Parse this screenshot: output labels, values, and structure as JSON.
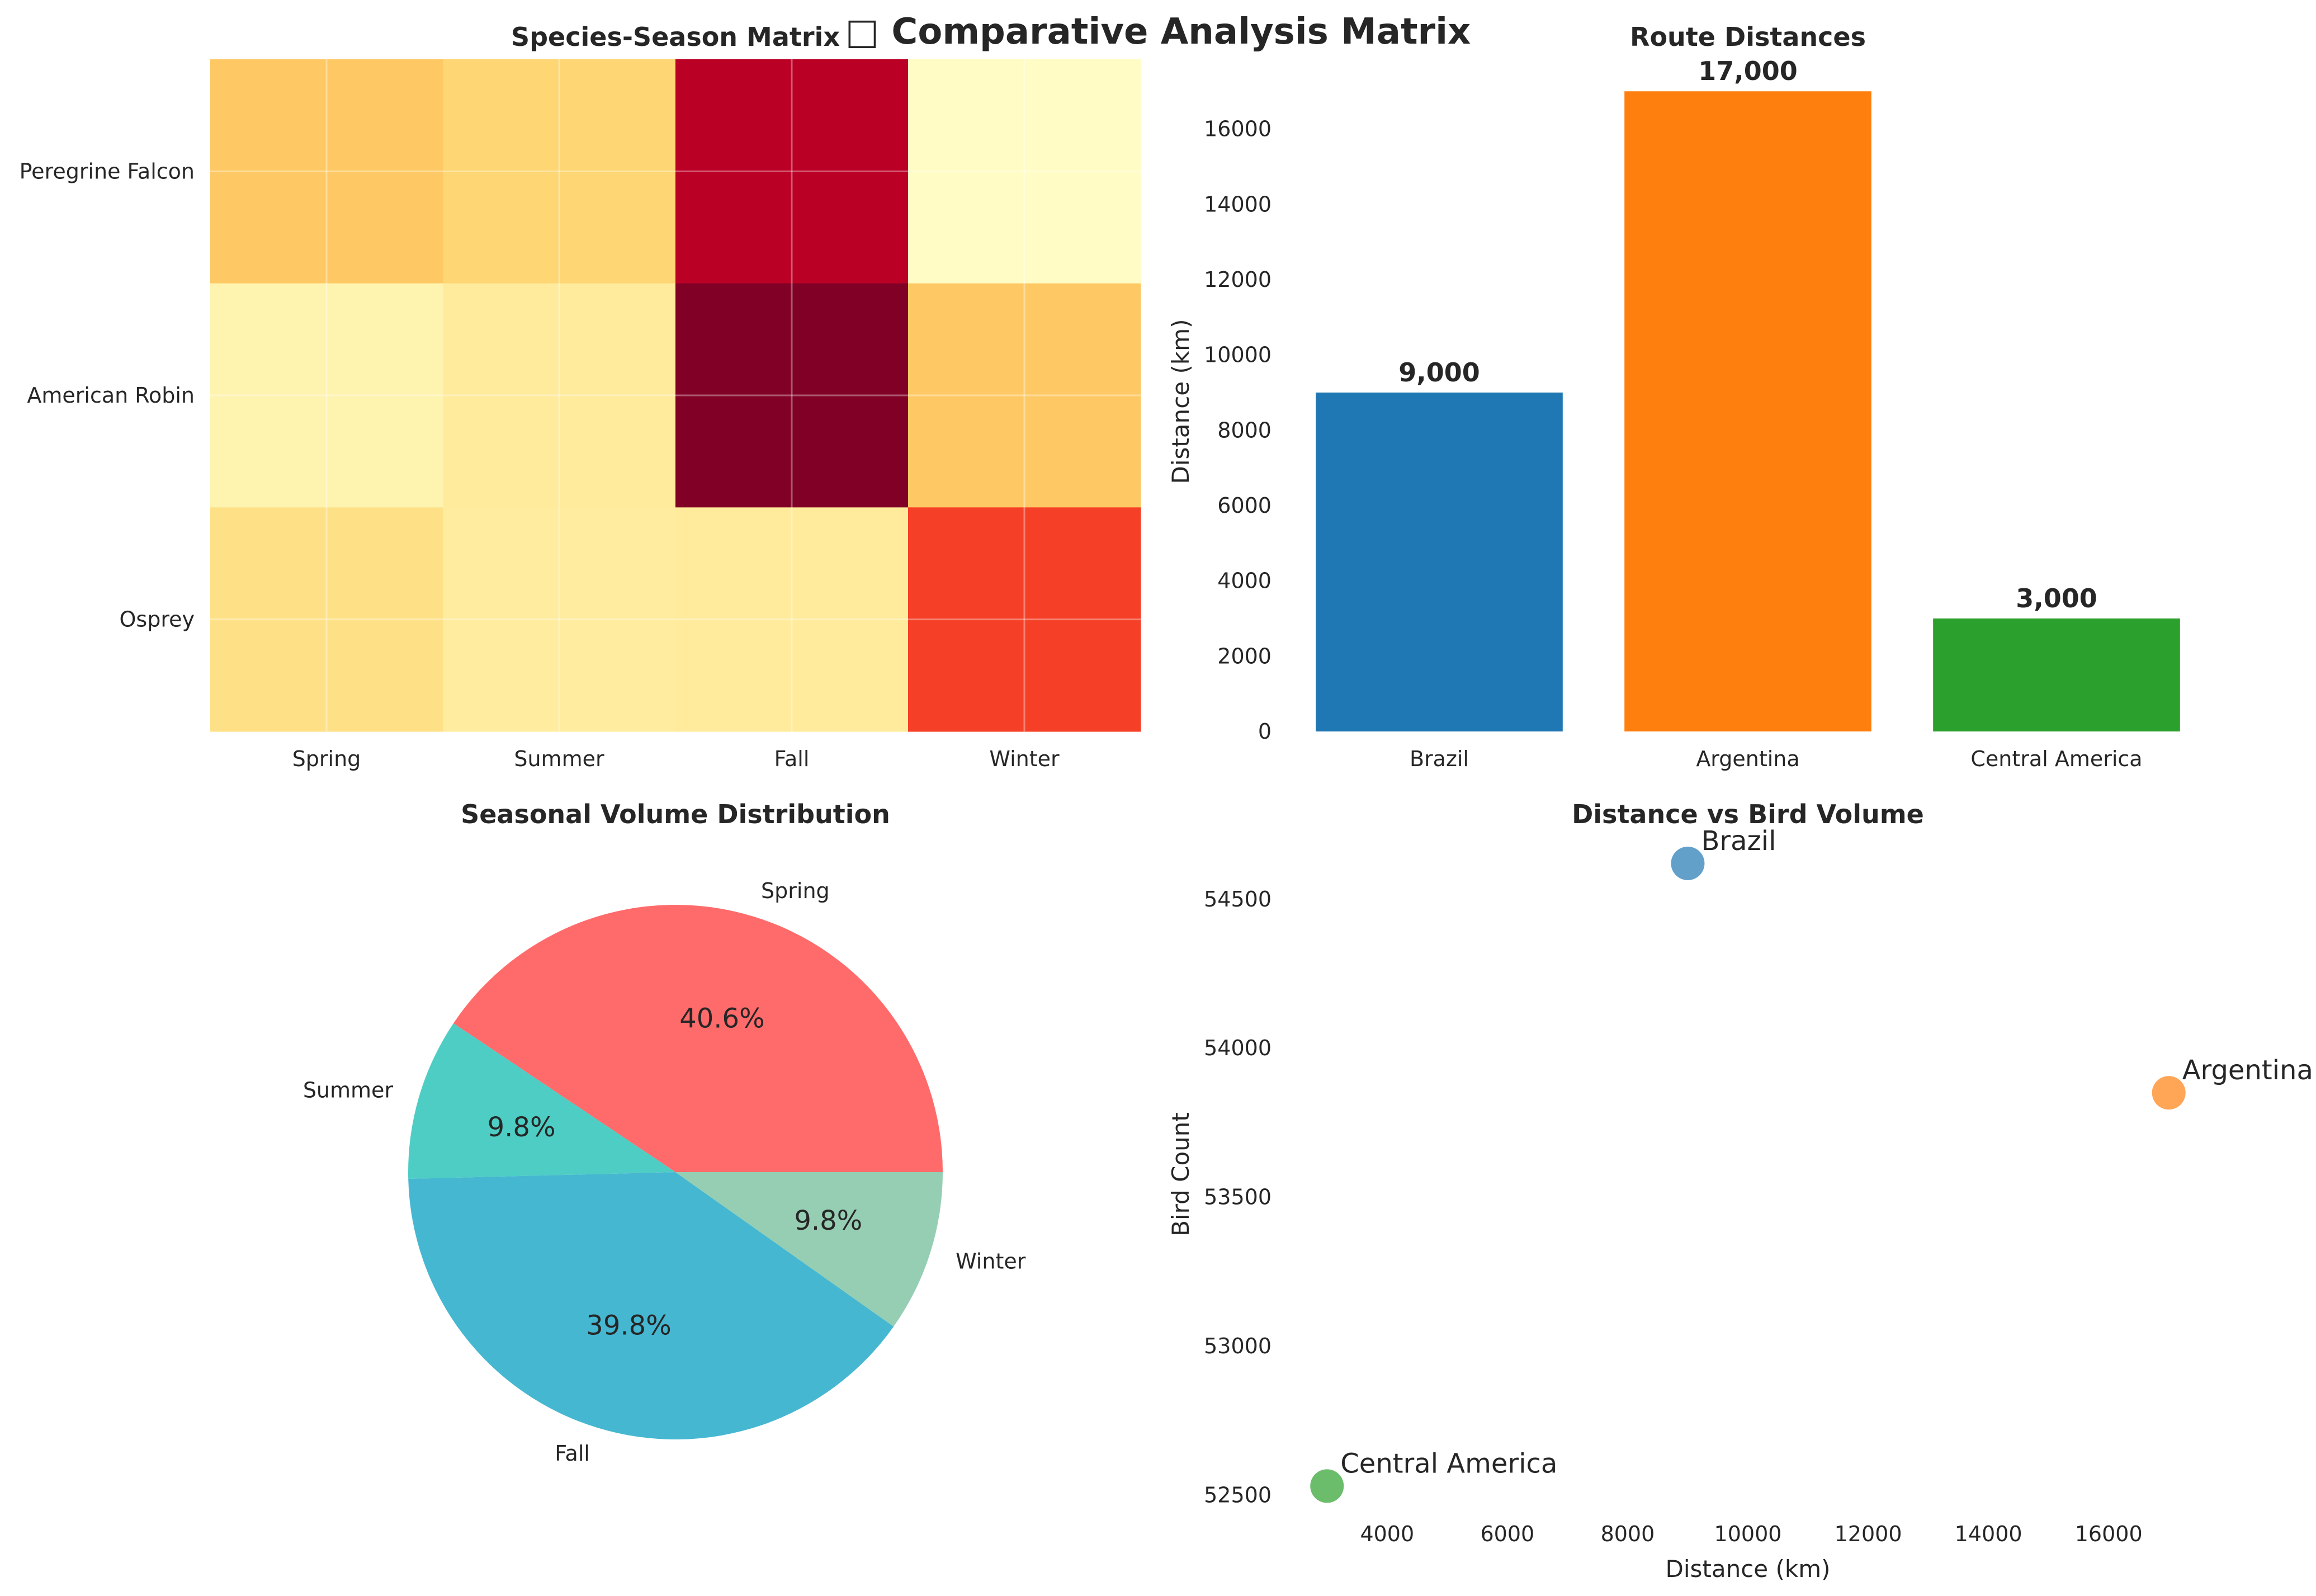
{
  "figure": {
    "title": "□ Comparative Analysis Matrix"
  },
  "chart_data": [
    {
      "type": "heatmap",
      "title": "Species-Season Matrix",
      "rows": [
        "Peregrine Falcon",
        "American Robin",
        "Osprey"
      ],
      "columns": [
        "Spring",
        "Summer",
        "Fall",
        "Winter"
      ],
      "values": [
        [
          0.3,
          0.26,
          0.88,
          0.02
        ],
        [
          0.08,
          0.14,
          1.0,
          0.3
        ],
        [
          0.2,
          0.13,
          0.14,
          0.66
        ]
      ],
      "colormap": "YlOrRd",
      "grid": true
    },
    {
      "type": "bar",
      "title": "Route Distances",
      "categories": [
        "Brazil",
        "Argentina",
        "Central America"
      ],
      "values": [
        9000,
        17000,
        3000
      ],
      "data_labels": [
        "9,000",
        "17,000",
        "3,000"
      ],
      "colors": [
        "#1f77b4",
        "#ff7f0e",
        "#2ca02c"
      ],
      "xlabel": "",
      "ylabel": "Distance (km)",
      "ylim": [
        0,
        17850
      ],
      "yticks": [
        0,
        2000,
        4000,
        6000,
        8000,
        10000,
        12000,
        14000,
        16000
      ]
    },
    {
      "type": "pie",
      "title": "Seasonal Volume Distribution",
      "labels": [
        "Spring",
        "Summer",
        "Fall",
        "Winter"
      ],
      "values": [
        40.6,
        9.8,
        39.8,
        9.8
      ],
      "pct_labels": [
        "40.6%",
        "9.8%",
        "39.8%",
        "9.8%"
      ],
      "colors": [
        "#ff6b6b",
        "#4ecdc4",
        "#45b7d1",
        "#96ceb4"
      ],
      "startangle": 0
    },
    {
      "type": "scatter",
      "title": "Distance vs Bird Volume",
      "xlabel": "Distance (km)",
      "ylabel": "Bird Count",
      "points": [
        {
          "label": "Brazil",
          "x": 9000,
          "y": 54620,
          "color": "#1f77b4"
        },
        {
          "label": "Argentina",
          "x": 17000,
          "y": 53850,
          "color": "#ff7f0e"
        },
        {
          "label": "Central America",
          "x": 3000,
          "y": 52530,
          "color": "#2ca02c"
        }
      ],
      "xlim": [
        2300,
        17700
      ],
      "ylim": [
        52450,
        54710
      ],
      "xticks": [
        4000,
        6000,
        8000,
        10000,
        12000,
        14000,
        16000
      ],
      "yticks": [
        52500,
        53000,
        53500,
        54000,
        54500
      ]
    }
  ]
}
